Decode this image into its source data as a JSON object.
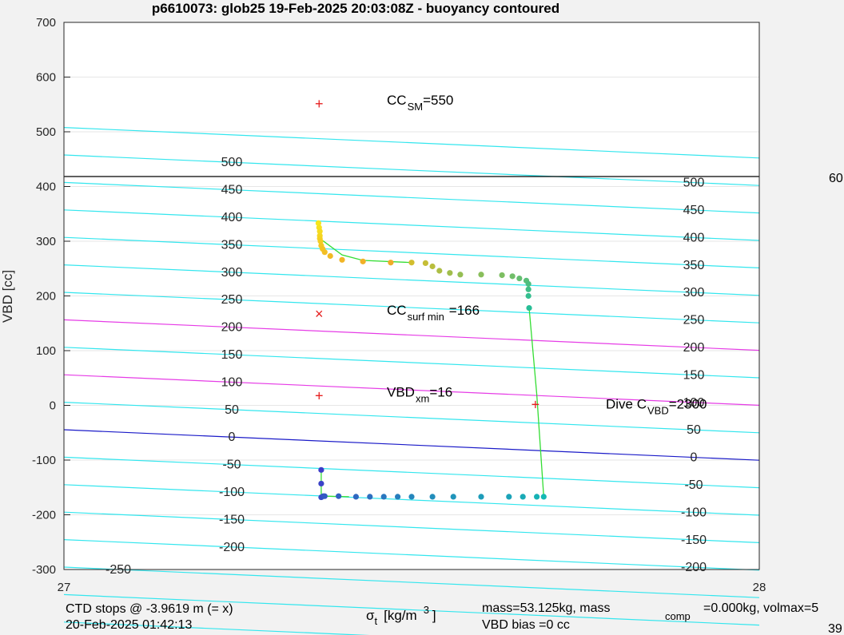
{
  "chart_data": {
    "type": "scatter",
    "title": "p6610073: glob25 19-Feb-2025 20:03:08Z - buoyancy contoured",
    "ylabel": "VBD [cc]",
    "xlabel_main": "σ",
    "xlabel_sub": "t",
    "xlabel_unit": "[kg/m",
    "xlabel_sup": "3",
    "xlabel_close": "]",
    "xlim": [
      27,
      28
    ],
    "ylim": [
      -300,
      700
    ],
    "x_ticks": [
      "27",
      "28"
    ],
    "y_ticks": [
      "700",
      "600",
      "500",
      "400",
      "300",
      "200",
      "100",
      "0",
      "-100",
      "-200",
      "-300"
    ],
    "grid": true,
    "contour_labels_left": [
      "500",
      "450",
      "400",
      "350",
      "300",
      "250",
      "200",
      "150",
      "100",
      "50",
      "0",
      "-50",
      "-100",
      "-150",
      "-200",
      "-250"
    ],
    "contour_labels_right": [
      "500",
      "450",
      "400",
      "350",
      "300",
      "250",
      "200",
      "150",
      "100",
      "50",
      "0",
      "-50",
      "-100",
      "-150",
      "-200"
    ],
    "reference_line_label": "60",
    "markers": [
      {
        "symbol": "+",
        "x": 27.367,
        "y": 550,
        "label": "CC",
        "sub": "SM",
        "suffix": "=550"
      },
      {
        "symbol": "×",
        "x": 27.367,
        "y": 166,
        "label": "CC",
        "sub": "surf min",
        "suffix": "=166"
      },
      {
        "symbol": "+",
        "x": 27.367,
        "y": 16,
        "label": "VBD",
        "sub": "xm",
        "suffix": "=16"
      },
      {
        "symbol": "+",
        "x": 27.678,
        "y": 0,
        "label": "Dive C",
        "sub": "VBD",
        "suffix": "=2300"
      }
    ],
    "series": [
      {
        "kind": "upper",
        "x": [
          27.366,
          27.367,
          27.368,
          27.368,
          27.368,
          27.369,
          27.37,
          27.372,
          27.375,
          27.383,
          27.4,
          27.43,
          27.47,
          27.5,
          27.52,
          27.53,
          27.54,
          27.555,
          27.57,
          27.6,
          27.63,
          27.645,
          27.655,
          27.665,
          27.668,
          27.668,
          27.668,
          27.669
        ],
        "y": [
          333,
          325,
          318,
          310,
          305,
          300,
          292,
          286,
          280,
          273,
          266,
          263,
          261,
          261,
          260,
          254,
          246,
          242,
          239,
          239,
          238,
          236,
          232,
          228,
          222,
          212,
          200,
          178
        ]
      },
      {
        "kind": "lower",
        "x": [
          27.37,
          27.37,
          27.37,
          27.373,
          27.375,
          27.395,
          27.42,
          27.44,
          27.46,
          27.48,
          27.5,
          27.53,
          27.56,
          27.6,
          27.64,
          27.66,
          27.68,
          27.69
        ],
        "y": [
          -118,
          -143,
          -168,
          -166,
          -166,
          -166,
          -167,
          -167,
          -167,
          -167,
          -167,
          -167,
          -167,
          -167,
          -167,
          -167,
          -167,
          -167
        ]
      }
    ],
    "connectors": [
      {
        "x": [
          27.368,
          27.4,
          27.43,
          27.5
        ],
        "y": [
          305,
          275,
          265,
          261
        ]
      },
      {
        "x": [
          27.669,
          27.68,
          27.69
        ],
        "y": [
          178,
          20,
          -167
        ]
      },
      {
        "x": [
          27.37,
          27.37,
          27.375,
          27.41
        ],
        "y": [
          -118,
          -168,
          -166,
          -167
        ]
      }
    ]
  },
  "footer": {
    "ctd_line1": "CTD stops @ -3.9619 m (= x)",
    "ctd_line2": "20-Feb-2025 01:42:13",
    "mass_line_a": "mass=53.125kg, mass",
    "mass_sub": "comp",
    "mass_line_b": "=0.000kg, volmax=5",
    "bias_line": "VBD bias =0 cc",
    "corner_number": "39"
  }
}
